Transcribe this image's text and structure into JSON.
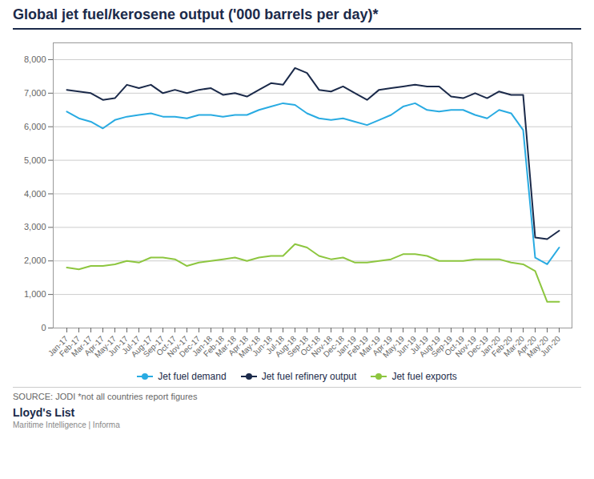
{
  "chart_data": {
    "type": "line",
    "title": "Global jet fuel/kerosene output ('000 barrels per day)*",
    "categories": [
      "Jan-17",
      "Feb-17",
      "Mar-17",
      "Apr-17",
      "May-17",
      "Jun-17",
      "Jul-17",
      "Aug-17",
      "Sep-17",
      "Oct-17",
      "Nov-17",
      "Dec-17",
      "Jan-18",
      "Feb-18",
      "Mar-18",
      "Apr-18",
      "May-18",
      "Jun-18",
      "Jul-18",
      "Aug-18",
      "Sep-18",
      "Oct-18",
      "Nov-18",
      "Dec-18",
      "Jan-19",
      "Feb-19",
      "Mar-19",
      "Apr-19",
      "May-19",
      "Jun-19",
      "Jul-19",
      "Aug-19",
      "Sep-19",
      "Oct-19",
      "Nov-19",
      "Dec-19",
      "Jan-20",
      "Feb-20",
      "Mar-20",
      "Apr-20",
      "May-20",
      "Jun-20"
    ],
    "series": [
      {
        "name": "Jet fuel demand",
        "color": "#29ABE2",
        "values": [
          6450,
          6250,
          6150,
          5950,
          6200,
          6300,
          6350,
          6400,
          6300,
          6300,
          6250,
          6350,
          6350,
          6300,
          6350,
          6350,
          6500,
          6600,
          6700,
          6650,
          6400,
          6250,
          6200,
          6250,
          6150,
          6050,
          6200,
          6350,
          6600,
          6700,
          6500,
          6450,
          6500,
          6500,
          6350,
          6250,
          6500,
          6400,
          5900,
          2100,
          1900,
          2400
        ]
      },
      {
        "name": "Jet fuel refinery output",
        "color": "#1B2A4A",
        "values": [
          7100,
          7050,
          7000,
          6800,
          6850,
          7250,
          7150,
          7250,
          7000,
          7100,
          7000,
          7100,
          7150,
          6950,
          7000,
          6900,
          7100,
          7300,
          7250,
          7750,
          7600,
          7100,
          7050,
          7200,
          7000,
          6800,
          7100,
          7150,
          7200,
          7250,
          7200,
          7200,
          6900,
          6850,
          7000,
          6850,
          7050,
          6950,
          6950,
          2700,
          2650,
          2900
        ]
      },
      {
        "name": "Jet fuel exports",
        "color": "#8DC63F",
        "values": [
          1800,
          1750,
          1850,
          1850,
          1900,
          2000,
          1950,
          2100,
          2100,
          2050,
          1850,
          1950,
          2000,
          2050,
          2100,
          2000,
          2100,
          2150,
          2150,
          2500,
          2400,
          2150,
          2050,
          2100,
          1950,
          1950,
          2000,
          2050,
          2200,
          2200,
          2150,
          2000,
          2000,
          2000,
          2050,
          2050,
          2050,
          1950,
          1900,
          1700,
          780,
          780
        ]
      }
    ],
    "ylim": [
      0,
      8500
    ],
    "yticks": [
      0,
      {
        "value": 1000,
        "label": "1,000"
      },
      {
        "value": 2000,
        "label": "2,000"
      },
      {
        "value": 3000,
        "label": "3,000"
      },
      {
        "value": 4000,
        "label": "4,000"
      },
      {
        "value": 5000,
        "label": "5,000"
      },
      {
        "value": 6000,
        "label": "6,000"
      },
      {
        "value": 7000,
        "label": "7,000"
      },
      {
        "value": 8000,
        "label": "8,000"
      }
    ],
    "grid": true,
    "legend": "bottom",
    "annotations": [
      "SOURCE: JODI *not all countries report figures",
      "Lloyd's List",
      "Maritime Intelligence | Informa"
    ]
  }
}
